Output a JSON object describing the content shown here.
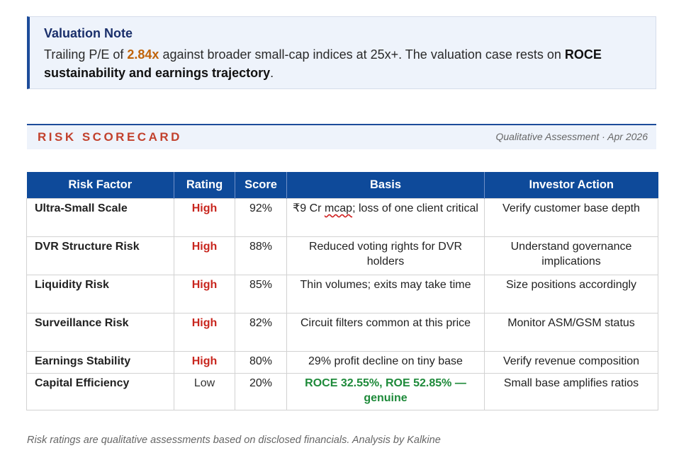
{
  "valuation_note": {
    "title": "Valuation Note",
    "text_before": "Trailing P/E of ",
    "pe_value": "2.84x",
    "text_middle": " against broader small-cap indices at 25x+. The valuation case rests on ",
    "emphasis": "ROCE sustainability and earnings trajectory",
    "text_end": "."
  },
  "scorecard": {
    "title": "RISK SCORECARD",
    "subtitle": "Qualitative Assessment · Apr 2026"
  },
  "table": {
    "headers": [
      "Risk Factor",
      "Rating",
      "Score",
      "Basis",
      "Investor Action"
    ],
    "rows": [
      {
        "factor": "Ultra-Small Scale",
        "rating": "High",
        "score": "92%",
        "basis_pre": "₹9 Cr ",
        "basis_marked": "mcap",
        "basis_post": "; loss of one client critical",
        "action": "Verify customer base depth"
      },
      {
        "factor": "DVR Structure Risk",
        "rating": "High",
        "score": "88%",
        "basis": "Reduced voting rights for DVR holders",
        "action": "Understand governance implications"
      },
      {
        "factor": "Liquidity Risk",
        "rating": "High",
        "score": "85%",
        "basis": "Thin volumes; exits may take time",
        "action": "Size positions accordingly"
      },
      {
        "factor": "Surveillance Risk",
        "rating": "High",
        "score": "82%",
        "basis": "Circuit filters common at this price",
        "action": "Monitor ASM/GSM status"
      },
      {
        "factor": "Earnings Stability",
        "rating": "High",
        "score": "80%",
        "basis": "29% profit decline on tiny base",
        "action": "Verify revenue composition"
      },
      {
        "factor": "Capital Efficiency",
        "rating": "Low",
        "score": "20%",
        "basis": "ROCE 32.55%, ROE 52.85% — genuine",
        "action": "Small base amplifies ratios"
      }
    ]
  },
  "footer": "Risk ratings are qualitative assessments based on disclosed financials. Analysis by Kalkine",
  "colors": {
    "accent_navy": "#0e4a9a",
    "note_bg": "#eef3fb",
    "high_red": "#c8261e",
    "good_green": "#1e8a3a",
    "pe_orange": "#c0640a"
  }
}
